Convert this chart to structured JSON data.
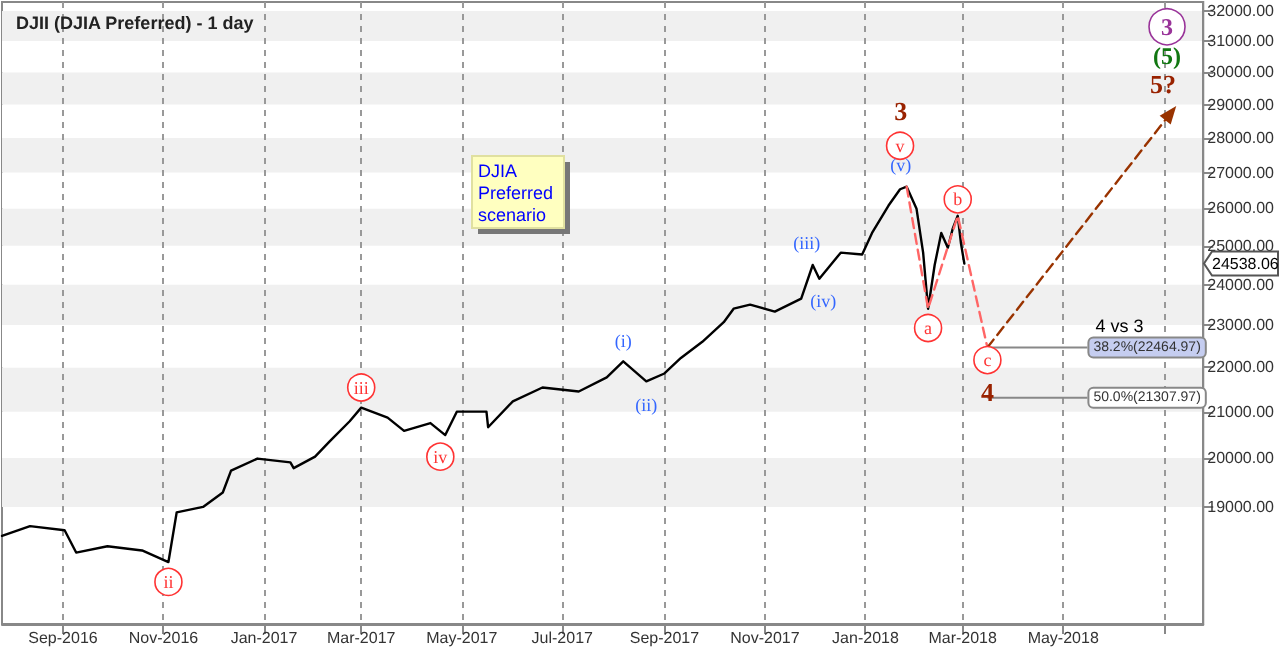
{
  "chart_data": {
    "type": "line",
    "title": "DJII (DJIA Preferred) - 1 day",
    "log": "y",
    "grid": "x",
    "marker": "none",
    "xlim": [
      "2016-07-26",
      "2018-07-25"
    ],
    "xticks": [
      {
        "value": "2016-09-01",
        "label": "Sep-2016"
      },
      {
        "value": "2016-11-01",
        "label": "Nov-2016"
      },
      {
        "value": "2017-01-01",
        "label": "Jan-2017"
      },
      {
        "value": "2017-03-01",
        "label": "Mar-2017"
      },
      {
        "value": "2017-05-01",
        "label": "May-2017"
      },
      {
        "value": "2017-07-01",
        "label": "Jul-2017"
      },
      {
        "value": "2017-09-01",
        "label": "Sep-2017"
      },
      {
        "value": "2017-11-01",
        "label": "Nov-2017"
      },
      {
        "value": "2018-01-01",
        "label": "Jan-2018"
      },
      {
        "value": "2018-03-01",
        "label": "Mar-2018"
      },
      {
        "value": "2018-05-01",
        "label": "May-2018"
      },
      {
        "value": "2018-07-01",
        "label": null
      }
    ],
    "ylim": [
      16800,
      32300
    ],
    "yticks": [
      {
        "value": 19000,
        "label": "19000.00"
      },
      {
        "value": 20000,
        "label": "20000.00"
      },
      {
        "value": 21000,
        "label": "21000.00"
      },
      {
        "value": 22000,
        "label": "22000.00"
      },
      {
        "value": 23000,
        "label": "23000.00"
      },
      {
        "value": 24000,
        "label": "24000.00"
      },
      {
        "value": 25000,
        "label": "25000.00"
      },
      {
        "value": 26000,
        "label": "26000.00"
      },
      {
        "value": 27000,
        "label": "27000.00"
      },
      {
        "value": 28000,
        "label": "28000.00"
      },
      {
        "value": 29000,
        "label": "29000.00"
      },
      {
        "value": 30000,
        "label": "30000.00"
      },
      {
        "value": 31000,
        "label": "31000.00"
      },
      {
        "value": 32000,
        "label": "32000.00"
      }
    ],
    "series": [
      {
        "color": "#000000",
        "x": [
          "2016-07-26",
          "2016-08-12",
          "2016-09-02",
          "2016-09-09",
          "2016-09-28",
          "2016-10-19",
          "2016-11-04",
          "2016-11-09",
          "2016-11-25",
          "2016-12-07",
          "2016-12-12",
          "2016-12-28",
          "2017-01-17",
          "2017-01-19",
          "2017-02-01",
          "2017-02-10",
          "2017-02-22",
          "2017-03-01",
          "2017-03-17",
          "2017-03-27",
          "2017-04-12",
          "2017-04-21",
          "2017-04-28",
          "2017-05-16",
          "2017-05-17",
          "2017-06-01",
          "2017-06-19",
          "2017-07-11",
          "2017-07-28",
          "2017-08-07",
          "2017-08-21",
          "2017-09-01",
          "2017-09-11",
          "2017-09-24",
          "2017-10-07",
          "2017-10-13",
          "2017-10-23",
          "2017-11-07",
          "2017-11-23",
          "2017-11-30",
          "2017-12-04",
          "2017-12-17",
          "2017-12-30",
          "2018-01-05",
          "2018-01-15",
          "2018-01-22",
          "2018-01-26",
          "2018-02-01",
          "2018-02-05",
          "2018-02-08",
          "2018-02-12",
          "2018-02-16",
          "2018-02-20",
          "2018-02-23",
          "2018-02-26",
          "2018-02-28",
          "2018-03-02"
        ],
        "values": [
          18430,
          18620,
          18540,
          18110,
          18230,
          18150,
          17930,
          18890,
          19000,
          19290,
          19740,
          19990,
          19910,
          19790,
          20030,
          20360,
          20790,
          21090,
          20870,
          20580,
          20750,
          20490,
          21000,
          21000,
          20660,
          21230,
          21540,
          21450,
          21770,
          22140,
          21680,
          21860,
          22220,
          22600,
          23070,
          23400,
          23500,
          23330,
          23650,
          24500,
          24150,
          24820,
          24770,
          25340,
          26080,
          26530,
          26600,
          25990,
          24820,
          23400,
          24500,
          25340,
          24950,
          25460,
          25800,
          25050,
          24538.06
        ]
      },
      {
        "color": "#ff6666",
        "line_style": "dashed",
        "x": [
          "2018-01-26",
          "2018-02-08",
          "2018-02-26",
          "2018-03-16"
        ],
        "values": [
          26600,
          23400,
          25800,
          22465
        ]
      },
      {
        "color": "#993300",
        "line_style": "dashed",
        "marker": "triangle",
        "x": [
          "2018-03-16",
          "2018-07-03"
        ],
        "values": [
          22465,
          28600
        ]
      }
    ],
    "ref_lines": [
      {
        "axis": "y",
        "value": 22464.97,
        "label": "38.2%(22464.97)"
      },
      {
        "axis": "y",
        "value": 21307.97,
        "label": "50.0%(21307.97)"
      }
    ],
    "annotations": [
      "DJIA Preferred scenario",
      {
        "text": "ii",
        "x": "2016-11-04",
        "y": 17560
      },
      {
        "text": "iii",
        "x": "2017-03-01",
        "y": 21540
      },
      {
        "text": "iv",
        "x": "2017-04-18",
        "y": 20030
      },
      "(i)",
      "(ii)",
      "(iii)",
      "(iv)",
      "(v)",
      {
        "text": "v",
        "x": "2018-01-22",
        "y": 27770
      },
      "3",
      {
        "text": "a",
        "x": "2018-02-08",
        "y": 22930
      },
      {
        "text": "b",
        "x": "2018-02-26",
        "y": 26250
      },
      {
        "text": "c",
        "x": "2018-03-16",
        "y": 22170
      },
      "4",
      "4 vs 3",
      "5?",
      "(5)",
      {
        "text": "3",
        "x": "2018-07-03",
        "y": 31470
      },
      "24538.06"
    ]
  }
}
